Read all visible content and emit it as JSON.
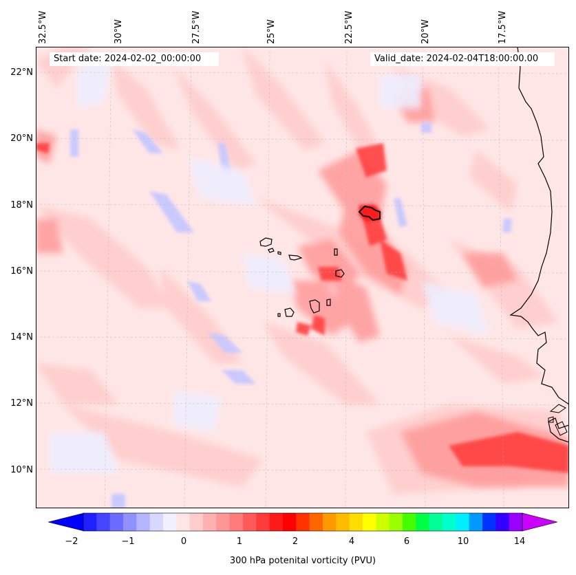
{
  "header": {
    "start_date": "Start date: 2024-02-02_00:00:00",
    "valid_date": "Valid_date: 2024-02-04T18:00:00.00"
  },
  "axes": {
    "lon_labels": [
      "32.5°W",
      "30°W",
      "27.5°W",
      "25°W",
      "22.5°W",
      "20°W",
      "17.5°W"
    ],
    "lat_labels": [
      "22°N",
      "20°N",
      "18°N",
      "16°N",
      "14°N",
      "12°N",
      "10°N"
    ]
  },
  "colorbar": {
    "title": "300 hPa potenital vorticity (PVU)",
    "tick_labels": [
      "−2",
      "−1",
      "0",
      "1",
      "2",
      "4",
      "6",
      "10",
      "14"
    ],
    "colors": [
      "#0000ff",
      "#2020ff",
      "#4545ff",
      "#6b6bff",
      "#9090ff",
      "#b4b4ff",
      "#d8d8ff",
      "#f0f0ff",
      "#ffe6e6",
      "#ffcccc",
      "#ffb0b0",
      "#ff9696",
      "#ff7a7a",
      "#ff5a5a",
      "#ff3a3a",
      "#ff1a1a",
      "#ff0000",
      "#ff3300",
      "#ff6600",
      "#ff9900",
      "#ffbb00",
      "#ffdd00",
      "#ffff00",
      "#ccff00",
      "#99ff00",
      "#44ff00",
      "#00ff44",
      "#00ff99",
      "#00ffcc",
      "#00eeff",
      "#0099ff",
      "#0033ff",
      "#3300ff",
      "#9900ff",
      "#cc00ff"
    ]
  },
  "map": {
    "background_color": "#ffe6e6",
    "coastline_color": "#000000"
  }
}
